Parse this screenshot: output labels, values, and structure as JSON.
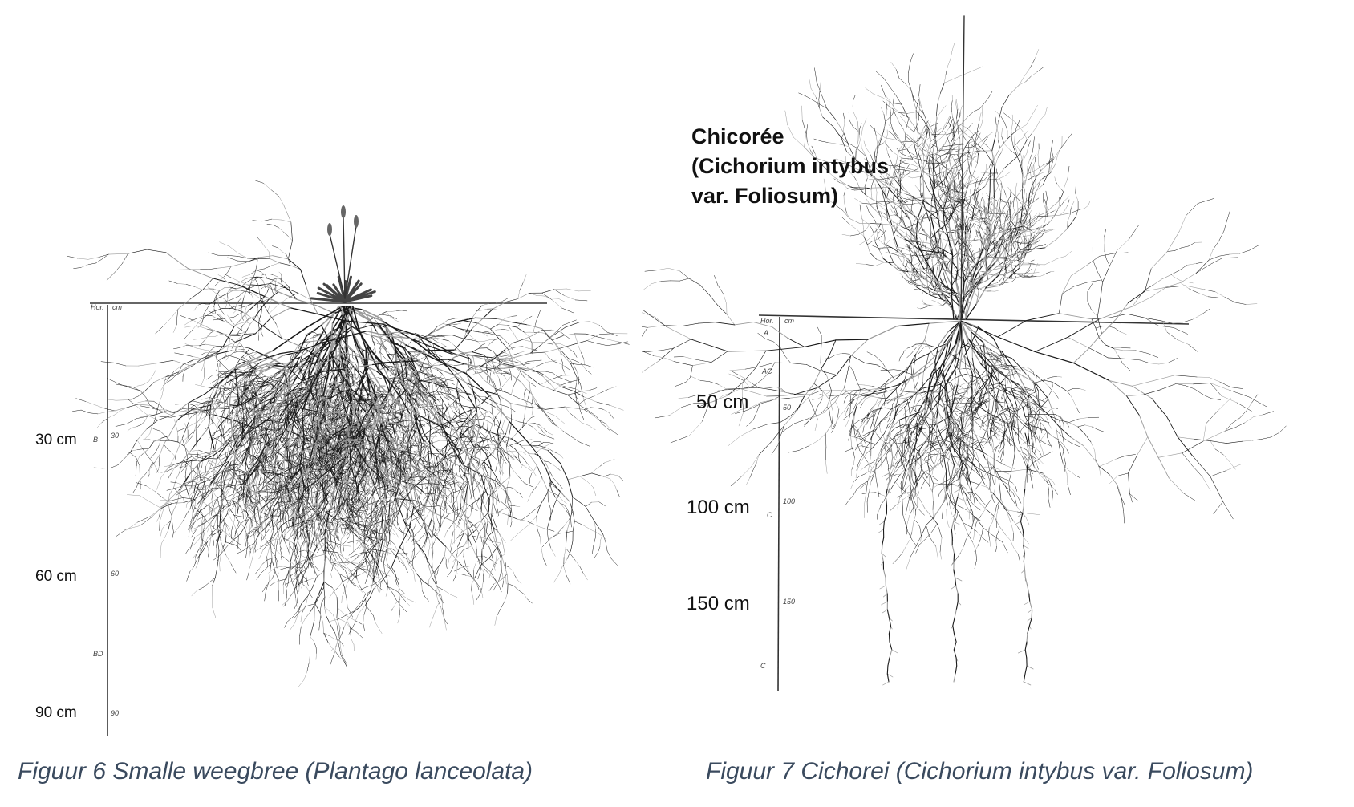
{
  "figure_left": {
    "depth_labels": [
      "30 cm",
      "60 cm",
      "90 cm"
    ],
    "scale_marks": [
      "Hor.",
      "cm",
      "B",
      "30",
      "60",
      "BD",
      "90"
    ],
    "caption": "Figuur 6 Smalle weegbree (Plantago lanceolata)"
  },
  "figure_right": {
    "title_lines": [
      "Chicorée",
      "(Cichorium intybus",
      "var. Foliosum)"
    ],
    "depth_labels": [
      "50 cm",
      "100 cm",
      "150 cm"
    ],
    "scale_marks": [
      "Hor.",
      "cm",
      "A",
      "AC",
      "50",
      "C",
      "100",
      "150",
      "C"
    ],
    "caption": "Figuur 7 Cichorei (Cichorium intybus var. Foliosum)"
  },
  "colors": {
    "ink": "#1a1a1a",
    "roots_light": "#9a9a9a",
    "caption": "#3a4a5e"
  }
}
